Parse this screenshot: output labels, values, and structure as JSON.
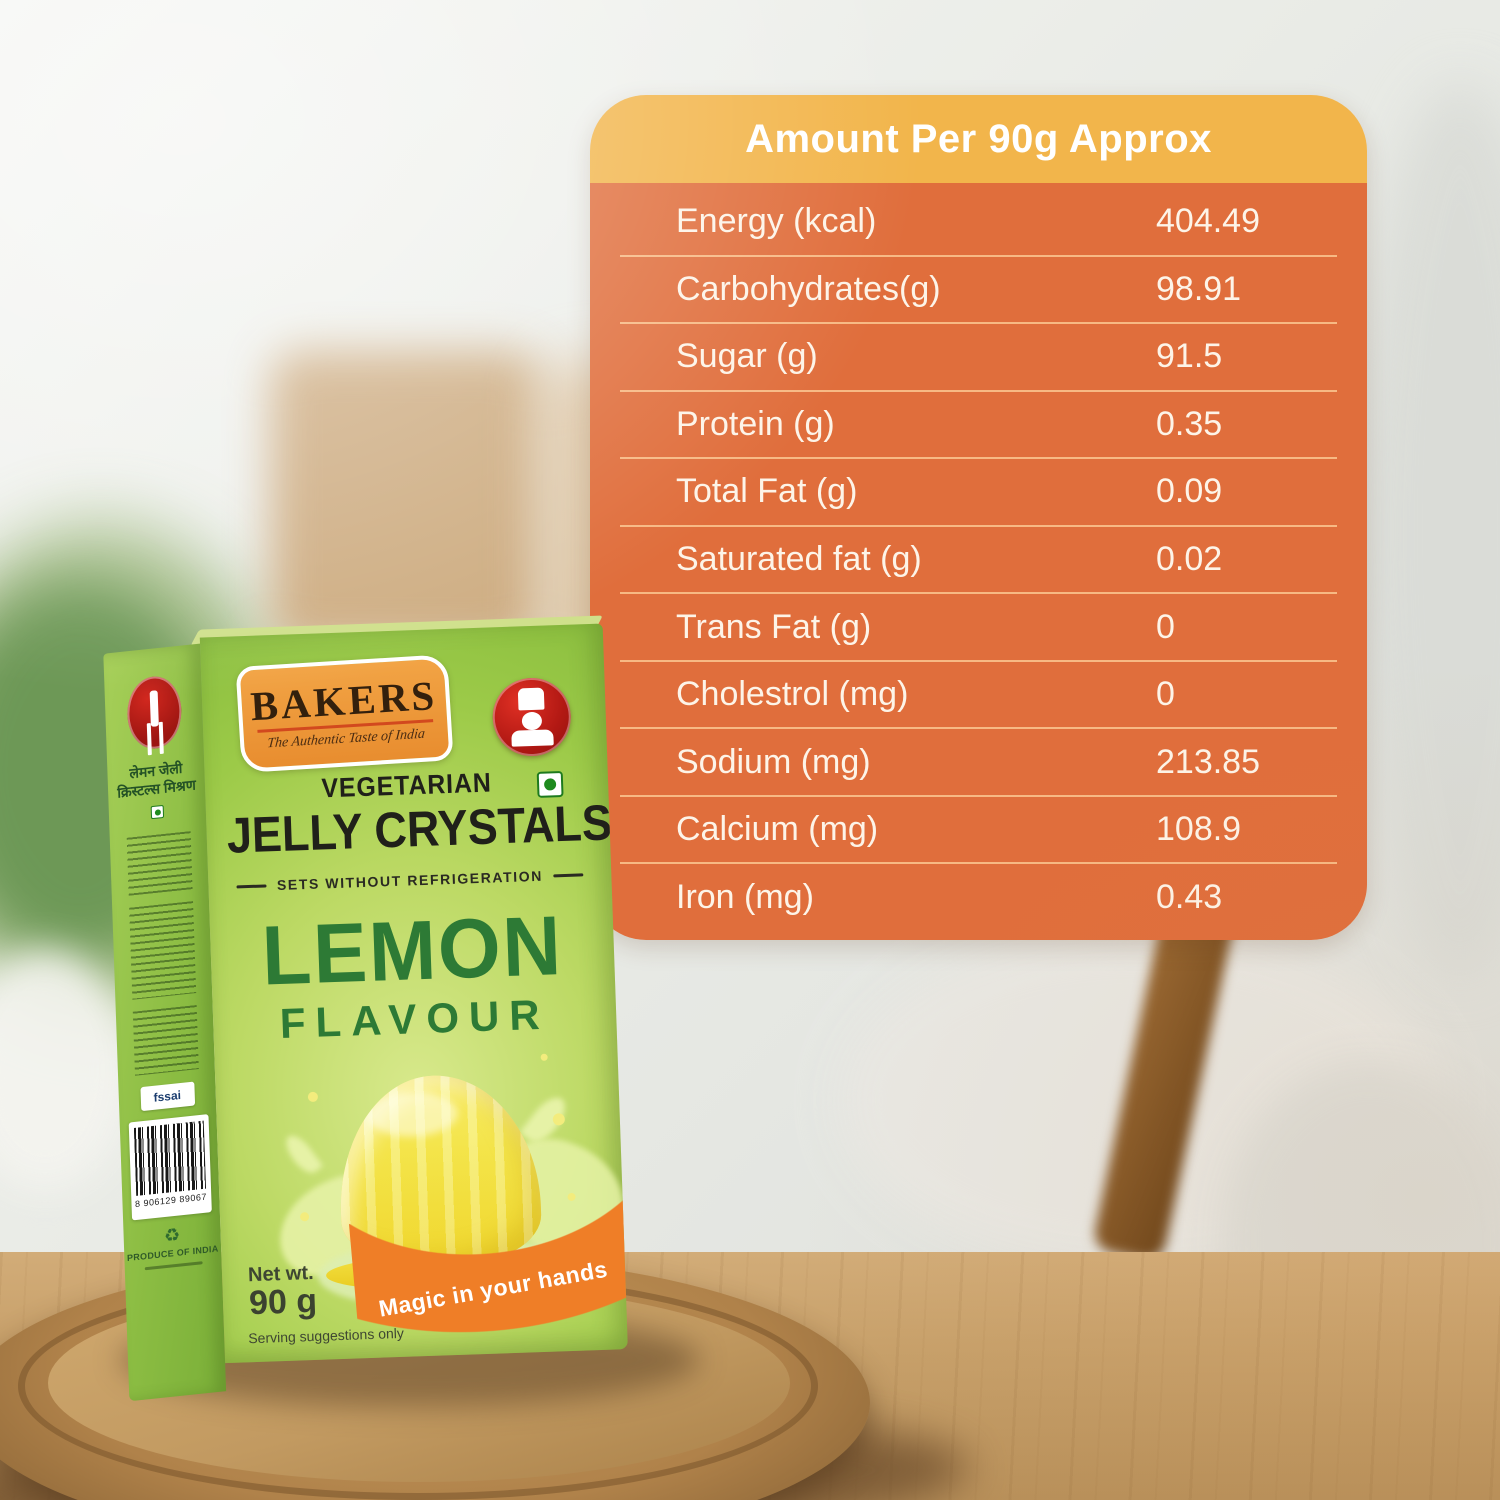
{
  "nutrition_panel": {
    "title": "Amount Per 90g Approx",
    "rows": [
      {
        "label": "Energy (kcal)",
        "value": "404.49"
      },
      {
        "label": "Carbohydrates(g)",
        "value": "98.91"
      },
      {
        "label": "Sugar (g)",
        "value": "91.5"
      },
      {
        "label": "Protein (g)",
        "value": "0.35"
      },
      {
        "label": "Total Fat (g)",
        "value": "0.09"
      },
      {
        "label": "Saturated fat (g)",
        "value": "0.02"
      },
      {
        "label": "Trans Fat (g)",
        "value": "0"
      },
      {
        "label": "Cholestrol (mg)",
        "value": "0"
      },
      {
        "label": "Sodium (mg)",
        "value": "213.85"
      },
      {
        "label": "Calcium (mg)",
        "value": "108.9"
      },
      {
        "label": "Iron (mg)",
        "value": "0.43"
      }
    ],
    "colors": {
      "header_bg": "#F2B54B",
      "body_bg": "#E06E3C",
      "divider": "#FFD39C",
      "text": "#FDF4E8"
    }
  },
  "product_box": {
    "brand": "BAKERS",
    "brand_tagline": "The Authentic Taste of India",
    "category": "VEGETARIAN",
    "product_name": "JELLY CRYSTALS",
    "subtitle": "SETS WITHOUT REFRIGERATION",
    "flavour": "LEMON",
    "flavour_word": "FLAVOUR",
    "net_wt_label": "Net wt.",
    "net_wt_value": "90 g",
    "serving_note": "Serving suggestions only",
    "ribbon_text": "Magic in your hands",
    "side_panel": {
      "hindi_name": "लेमन जेली क्रिस्टल्स मिश्रण",
      "fssai_logo": "fssai",
      "barcode_digits": "8 906129 89067",
      "origin": "PRODUCE OF INDIA"
    },
    "colors": {
      "box_green_light": "#C3D96A",
      "box_green": "#8CC63F",
      "logo_orange": "#F0993C",
      "chef_red": "#C4201D",
      "title_green": "#2D7A35",
      "ribbon_orange": "#EF7E27",
      "ink": "#20201A"
    }
  }
}
